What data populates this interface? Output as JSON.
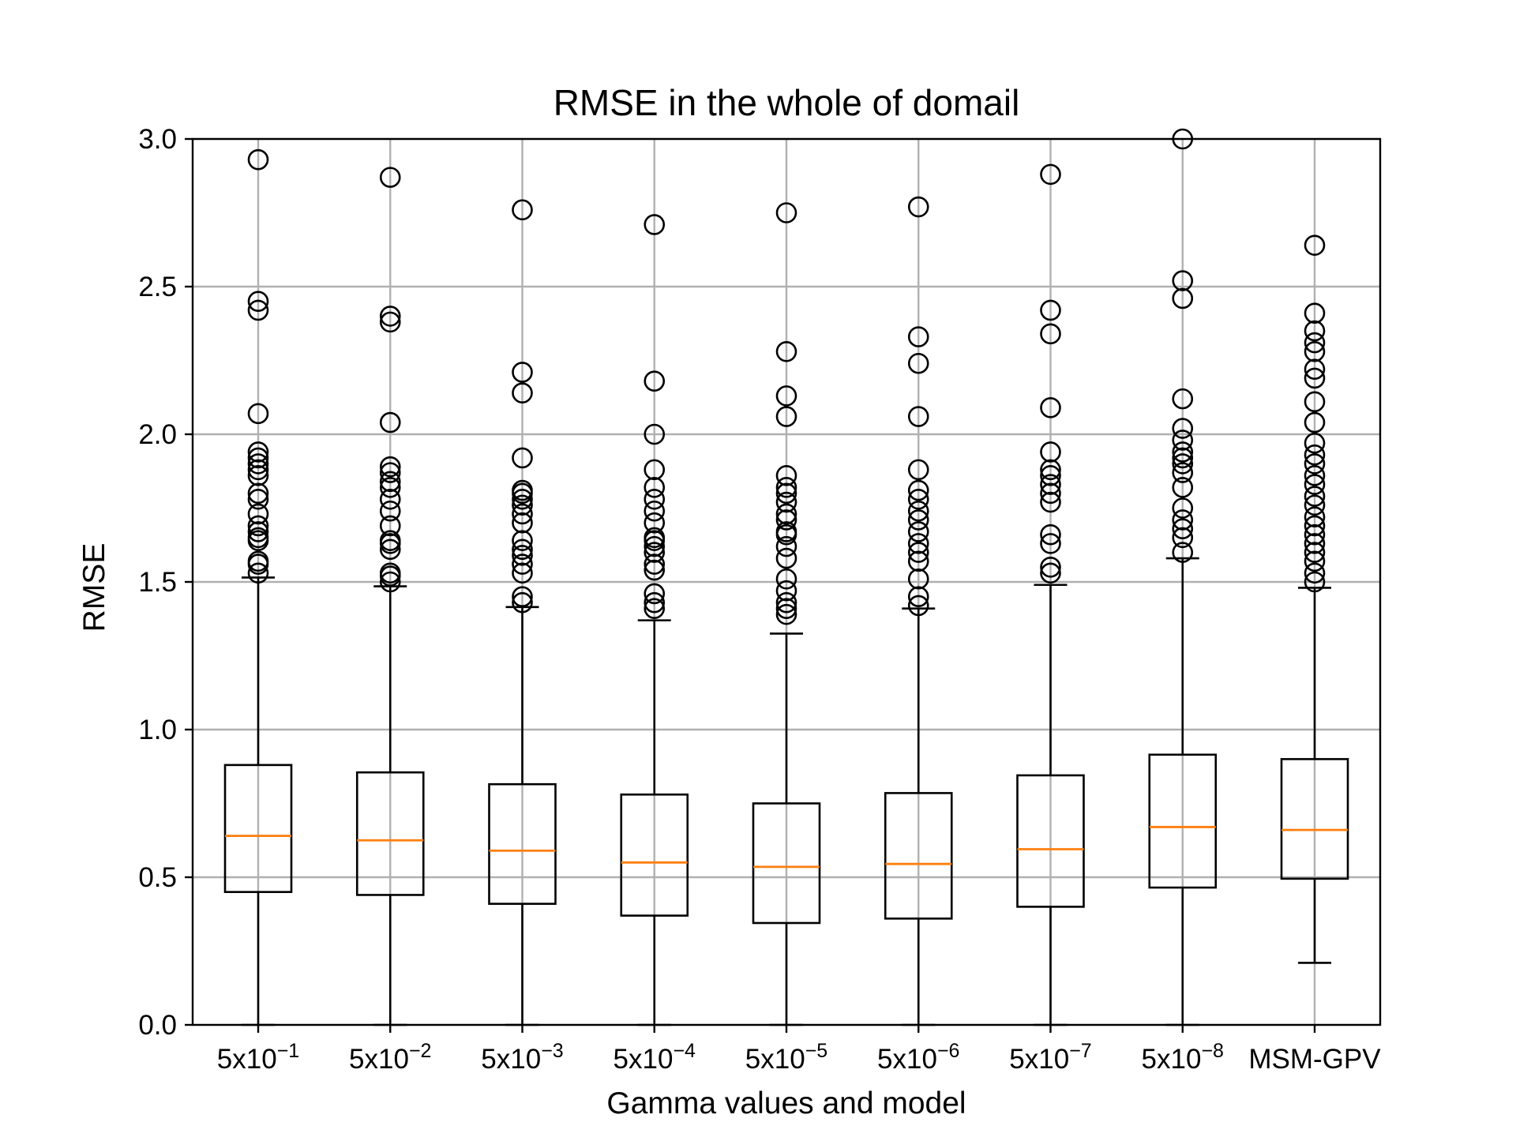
{
  "chart_data": {
    "type": "boxplot",
    "title": "RMSE in the whole of domail",
    "xlabel": "Gamma values and model",
    "ylabel": "RMSE",
    "ylim": [
      0,
      3.0
    ],
    "grid": true,
    "yticks": [
      {
        "value": 0.0,
        "label": "0.0"
      },
      {
        "value": 0.5,
        "label": "0.5"
      },
      {
        "value": 1.0,
        "label": "1.0"
      },
      {
        "value": 1.5,
        "label": "1.5"
      },
      {
        "value": 2.0,
        "label": "2.0"
      },
      {
        "value": 2.5,
        "label": "2.5"
      },
      {
        "value": 3.0,
        "label": "3.0"
      }
    ],
    "categories": [
      {
        "base": "5x10",
        "exp": "−1"
      },
      {
        "base": "5x10",
        "exp": "−2"
      },
      {
        "base": "5x10",
        "exp": "−3"
      },
      {
        "base": "5x10",
        "exp": "−4"
      },
      {
        "base": "5x10",
        "exp": "−5"
      },
      {
        "base": "5x10",
        "exp": "−6"
      },
      {
        "base": "5x10",
        "exp": "−7"
      },
      {
        "base": "5x10",
        "exp": "−8"
      },
      {
        "base": "MSM-GPV",
        "exp": ""
      }
    ],
    "boxes": [
      {
        "whisker_low": 0.0,
        "q1": 0.45,
        "median": 0.64,
        "q3": 0.88,
        "whisker_high": 1.515,
        "fliers": [
          1.53,
          1.56,
          1.57,
          1.64,
          1.65,
          1.67,
          1.69,
          1.73,
          1.78,
          1.8,
          1.86,
          1.88,
          1.9,
          1.92,
          1.94,
          2.07,
          2.42,
          2.45,
          2.93
        ]
      },
      {
        "whisker_low": 0.0,
        "q1": 0.44,
        "median": 0.625,
        "q3": 0.855,
        "whisker_high": 1.485,
        "fliers": [
          1.5,
          1.52,
          1.53,
          1.61,
          1.63,
          1.64,
          1.69,
          1.74,
          1.78,
          1.82,
          1.84,
          1.87,
          1.89,
          2.04,
          2.38,
          2.4,
          2.87
        ]
      },
      {
        "whisker_low": 0.0,
        "q1": 0.41,
        "median": 0.59,
        "q3": 0.815,
        "whisker_high": 1.415,
        "fliers": [
          1.43,
          1.45,
          1.53,
          1.56,
          1.59,
          1.61,
          1.64,
          1.7,
          1.73,
          1.76,
          1.78,
          1.8,
          1.81,
          1.92,
          2.14,
          2.21,
          2.76
        ]
      },
      {
        "whisker_low": 0.0,
        "q1": 0.37,
        "median": 0.55,
        "q3": 0.78,
        "whisker_high": 1.37,
        "fliers": [
          1.41,
          1.43,
          1.46,
          1.54,
          1.56,
          1.6,
          1.62,
          1.64,
          1.65,
          1.7,
          1.74,
          1.78,
          1.82,
          1.88,
          2.0,
          2.18,
          2.71
        ]
      },
      {
        "whisker_low": 0.0,
        "q1": 0.345,
        "median": 0.535,
        "q3": 0.75,
        "whisker_high": 1.325,
        "fliers": [
          1.39,
          1.41,
          1.43,
          1.47,
          1.51,
          1.58,
          1.62,
          1.66,
          1.67,
          1.71,
          1.73,
          1.77,
          1.8,
          1.82,
          1.86,
          2.06,
          2.13,
          2.28,
          2.75
        ]
      },
      {
        "whisker_low": 0.0,
        "q1": 0.36,
        "median": 0.545,
        "q3": 0.785,
        "whisker_high": 1.41,
        "fliers": [
          1.42,
          1.45,
          1.51,
          1.57,
          1.6,
          1.63,
          1.67,
          1.71,
          1.74,
          1.78,
          1.81,
          1.88,
          2.06,
          2.24,
          2.33,
          2.77
        ]
      },
      {
        "whisker_low": 0.0,
        "q1": 0.4,
        "median": 0.595,
        "q3": 0.845,
        "whisker_high": 1.49,
        "fliers": [
          1.53,
          1.55,
          1.63,
          1.66,
          1.77,
          1.8,
          1.83,
          1.86,
          1.88,
          1.94,
          2.09,
          2.34,
          2.42,
          2.88
        ]
      },
      {
        "whisker_low": 0.0,
        "q1": 0.465,
        "median": 0.67,
        "q3": 0.915,
        "whisker_high": 1.58,
        "fliers": [
          1.6,
          1.65,
          1.68,
          1.71,
          1.75,
          1.82,
          1.87,
          1.9,
          1.92,
          1.94,
          1.98,
          2.02,
          2.12,
          2.46,
          2.52,
          3.0
        ]
      },
      {
        "whisker_low": 0.21,
        "q1": 0.495,
        "median": 0.66,
        "q3": 0.9,
        "whisker_high": 1.48,
        "fliers": [
          1.5,
          1.53,
          1.57,
          1.6,
          1.63,
          1.66,
          1.69,
          1.72,
          1.76,
          1.79,
          1.83,
          1.86,
          1.9,
          1.93,
          1.97,
          2.04,
          2.11,
          2.19,
          2.22,
          2.28,
          2.31,
          2.35,
          2.41,
          2.64
        ]
      }
    ]
  }
}
